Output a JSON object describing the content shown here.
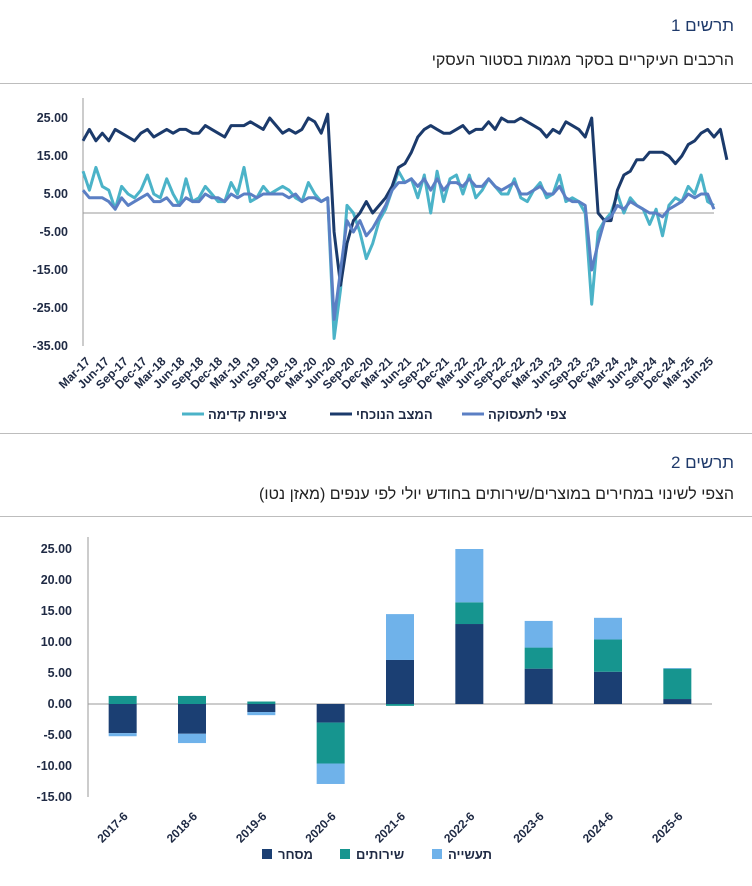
{
  "figure1": {
    "label": "תרשים 1",
    "title": "הרכבים העיקריים בסקר מגמות בסטור העסקי",
    "chart_data": {
      "type": "line",
      "ylim": [
        -35,
        30
      ],
      "yticks": [
        "25.00",
        "15.00",
        "5.00",
        "-5.00",
        "-15.00",
        "-25.00",
        "-35.00"
      ],
      "ytick_values": [
        25,
        15,
        5,
        -5,
        -15,
        -25,
        -35
      ],
      "xlabels": [
        "Mar-17",
        "Jun-17",
        "Sep-17",
        "Dec-17",
        "Mar-18",
        "Jun-18",
        "Sep-18",
        "Dec-18",
        "Mar-19",
        "Jun-19",
        "Sep-19",
        "Dec-19",
        "Mar-20",
        "Jun-20",
        "Sep-20",
        "Dec-20",
        "Mar-21",
        "Jun-21",
        "Sep-21",
        "Dec-21",
        "Mar-22",
        "Jun-22",
        "Sep-22",
        "Dec-22",
        "Mar-23",
        "Jun-23",
        "Sep-23",
        "Dec-23",
        "Mar-24",
        "Jun-24",
        "Sep-24",
        "Dec-24",
        "Mar-25",
        "Jun-25"
      ],
      "legend": [
        "ציפיות קדימה",
        "המצב הנוכחי",
        "צפי לתעסוקה"
      ],
      "series": [
        {
          "name": "ציפיות קדימה",
          "color": "#4bb3c8",
          "values": [
            11,
            6,
            12,
            7,
            6,
            1,
            7,
            5,
            4,
            6,
            10,
            5,
            4,
            9,
            5,
            2,
            9,
            3,
            4,
            7,
            5,
            3,
            3,
            8,
            5,
            12,
            3,
            4,
            7,
            5,
            6,
            7,
            6,
            4,
            3,
            8,
            5,
            3,
            4,
            -33,
            -20,
            2,
            0,
            -5,
            -12,
            -8,
            -2,
            1,
            6,
            11,
            8,
            9,
            4,
            10,
            0,
            11,
            3,
            9,
            10,
            5,
            10,
            4,
            6,
            9,
            7,
            5,
            5,
            9,
            4,
            3,
            6,
            8,
            4,
            5,
            10,
            3,
            4,
            3,
            0,
            -24,
            -5,
            -2,
            0,
            5,
            0,
            4,
            2,
            1,
            -3,
            1,
            -6,
            2,
            4,
            3,
            7,
            5,
            10,
            3,
            2
          ]
        },
        {
          "name": "המצב הנוכחי",
          "color": "#1b3a6b",
          "values": [
            19,
            22,
            19,
            21,
            19,
            22,
            21,
            20,
            19,
            21,
            22,
            20,
            21,
            22,
            21,
            22,
            22,
            21,
            21,
            23,
            22,
            21,
            20,
            23,
            23,
            23,
            24,
            23,
            22,
            25,
            23,
            21,
            22,
            21,
            22,
            25,
            24,
            21,
            26,
            -5,
            -19,
            -8,
            -2,
            0,
            3,
            0,
            2,
            4,
            7,
            12,
            13,
            16,
            20,
            22,
            23,
            22,
            21,
            21,
            22,
            23,
            21,
            22,
            22,
            24,
            22,
            25,
            24,
            24,
            25,
            24,
            23,
            22,
            20,
            22,
            21,
            24,
            23,
            22,
            20,
            25,
            0,
            -2,
            -2,
            6,
            10,
            11,
            14,
            14,
            16,
            16,
            16,
            15,
            13,
            15,
            18,
            19,
            21,
            22,
            20,
            22,
            14
          ]
        },
        {
          "name": "צפי לתעסוקה",
          "color": "#5b7fc4",
          "values": [
            6,
            4,
            4,
            4,
            3,
            1,
            4,
            2,
            3,
            4,
            5,
            3,
            3,
            4,
            2,
            2,
            4,
            3,
            3,
            5,
            4,
            4,
            3,
            5,
            4,
            5,
            5,
            4,
            5,
            5,
            5,
            5,
            4,
            5,
            3,
            4,
            4,
            3,
            4,
            -28,
            -15,
            -2,
            -5,
            -2,
            -6,
            -4,
            -1,
            2,
            6,
            8,
            8,
            9,
            7,
            9,
            6,
            9,
            6,
            8,
            8,
            7,
            9,
            7,
            7,
            9,
            7,
            6,
            7,
            8,
            5,
            5,
            6,
            7,
            5,
            5,
            7,
            4,
            3,
            3,
            2,
            -15,
            -8,
            -2,
            -1,
            2,
            1,
            3,
            2,
            1,
            0,
            0,
            -1,
            1,
            2,
            3,
            5,
            4,
            5,
            5,
            1
          ]
        }
      ]
    }
  },
  "figure2": {
    "label": "תרשים 2",
    "title": "הצפי לשינוי במחירים במוצרים/שירותים בחודש יולי לפי ענפים (מאזן נטו)",
    "chart_data": {
      "type": "bar",
      "stacked": true,
      "categories": [
        "2017-6",
        "2018-6",
        "2019-6",
        "2020-6",
        "2021-6",
        "2022-6",
        "2023-6",
        "2024-6",
        "2025-6"
      ],
      "ylim": [
        -15,
        25
      ],
      "yticks": [
        "25.00",
        "20.00",
        "15.00",
        "10.00",
        "5.00",
        "0.00",
        "-5.00",
        "-10.00",
        "-15.00"
      ],
      "ytick_values": [
        25,
        20,
        15,
        10,
        5,
        0,
        -5,
        -10,
        -15
      ],
      "legend": [
        "מסחר",
        "שירותים",
        "תעשייה"
      ],
      "series": [
        {
          "name": "מסחר",
          "color": "#1b3f73",
          "values": [
            -4.7,
            -4.8,
            -1.3,
            -3.0,
            7.1,
            12.9,
            5.7,
            5.2,
            0.8
          ]
        },
        {
          "name": "שירותים",
          "color": "#16958f",
          "values": [
            1.3,
            1.3,
            0.4,
            -6.6,
            -0.3,
            3.5,
            3.4,
            5.2,
            4.9
          ]
        },
        {
          "name": "תעשייה",
          "color": "#6fb2ea",
          "values": [
            -0.5,
            -1.5,
            -0.5,
            -3.3,
            7.4,
            8.6,
            4.3,
            3.5,
            0.1
          ]
        }
      ]
    }
  }
}
